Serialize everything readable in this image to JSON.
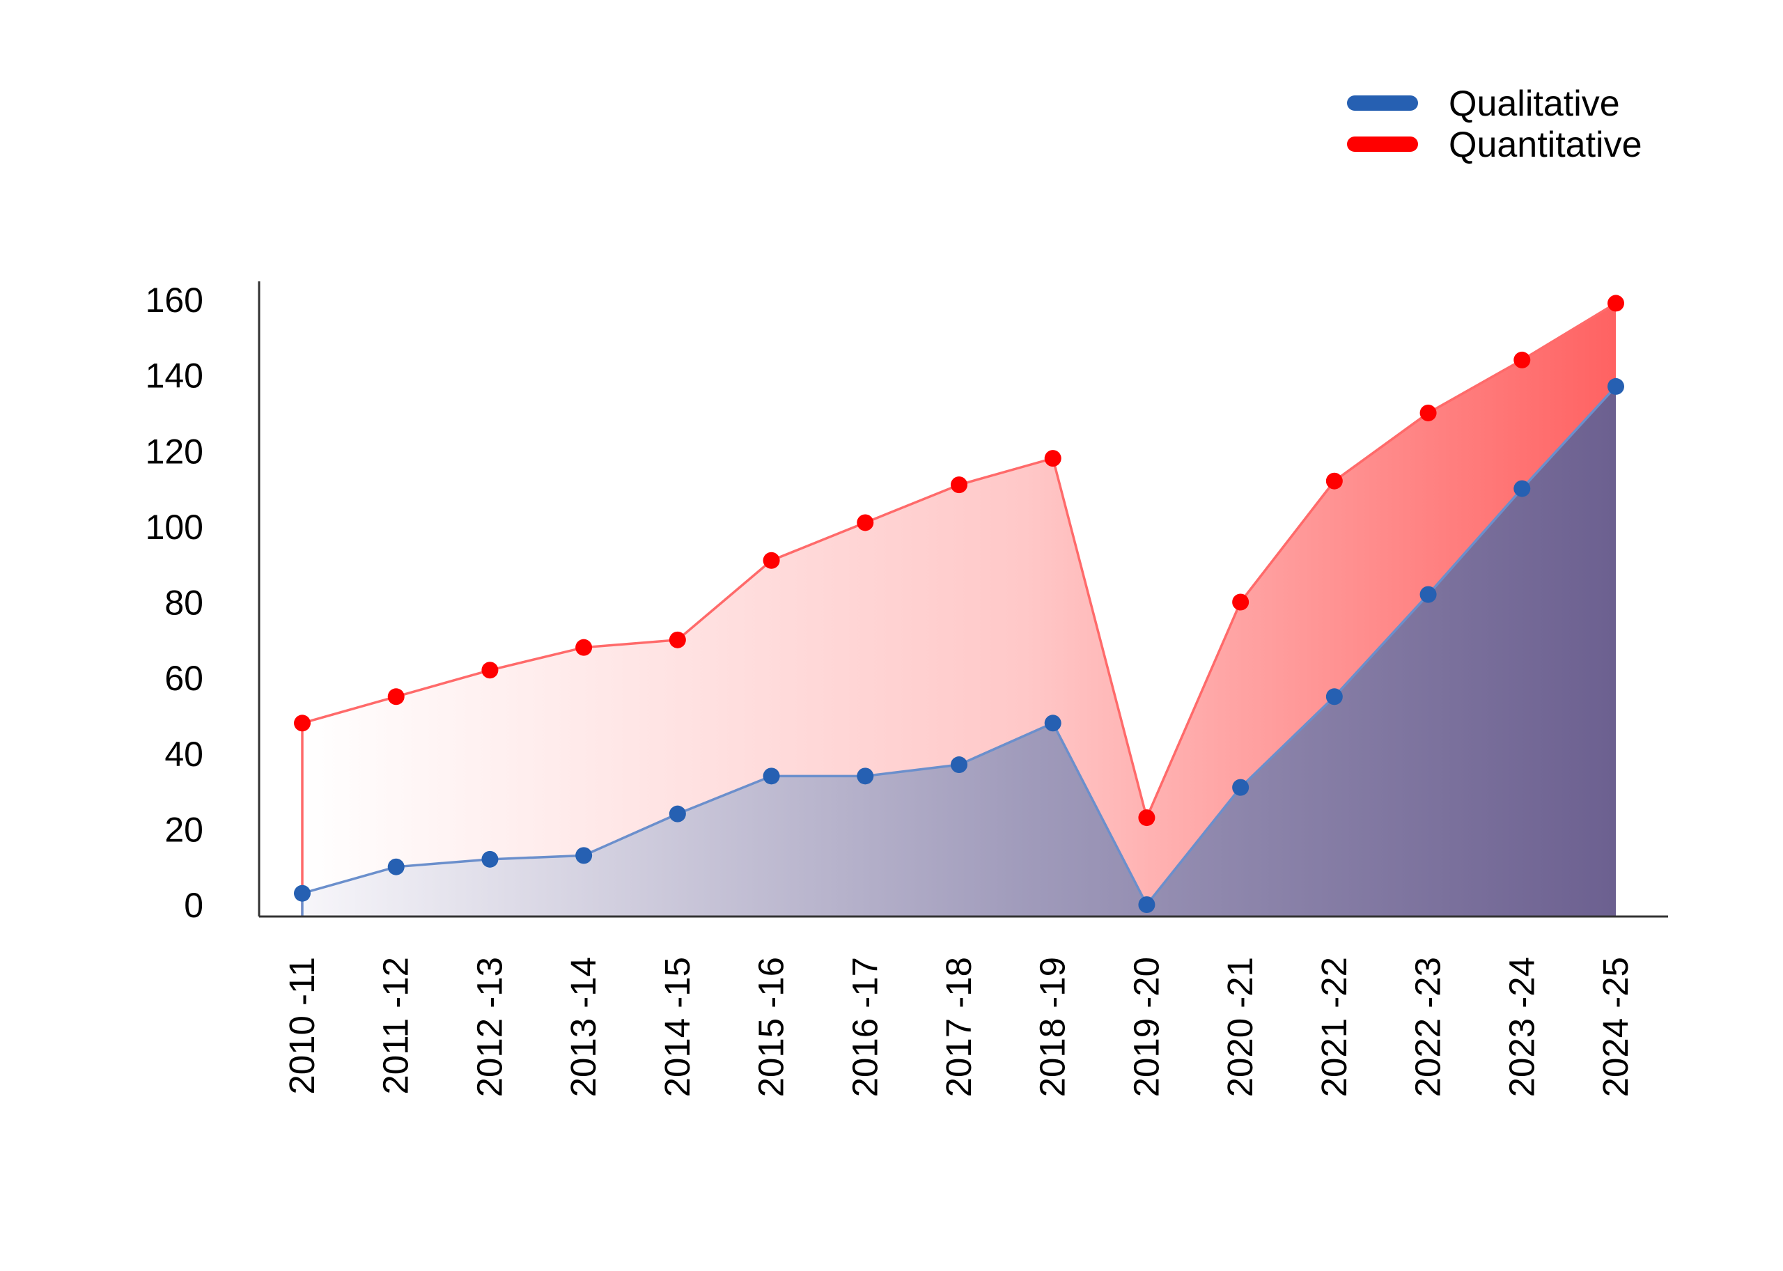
{
  "chart_data": {
    "type": "area",
    "title": "",
    "xlabel": "",
    "ylabel": "",
    "categories": [
      "2010 -11",
      "2011 -12",
      "2012 -13",
      "2013 -14",
      "2014 -15",
      "2015 -16",
      "2016 -17",
      "2017 -18",
      "2018 -19",
      "2019 -20",
      "2020 -21",
      "2021 -22",
      "2022 -23",
      "2023 -24",
      "2024 -25"
    ],
    "ylim": [
      0,
      160
    ],
    "yticks": [
      0,
      20,
      40,
      60,
      80,
      100,
      120,
      140,
      160
    ],
    "grid": false,
    "legend_position": "top-right",
    "series": [
      {
        "name": "Qualitative",
        "color": "#2660b2",
        "values": [
          3,
          10,
          12,
          13,
          24,
          34,
          34,
          37,
          48,
          0,
          31,
          55,
          82,
          110,
          137
        ]
      },
      {
        "name": "Quantitative",
        "color": "#ff0000",
        "values": [
          48,
          55,
          62,
          68,
          70,
          91,
          101,
          111,
          118,
          23,
          80,
          112,
          130,
          144,
          159
        ]
      }
    ]
  }
}
